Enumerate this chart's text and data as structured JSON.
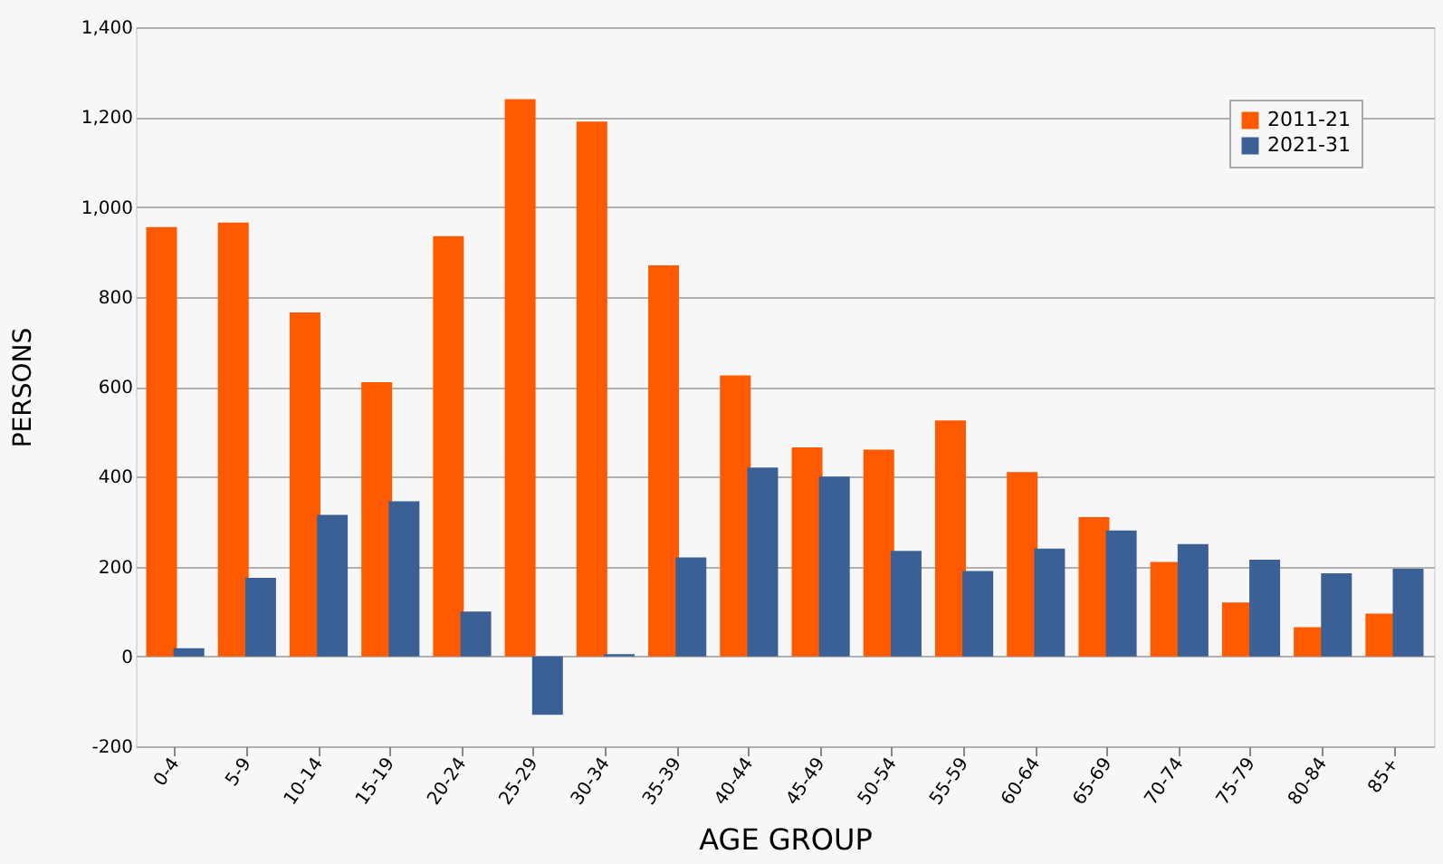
{
  "chart_data": {
    "type": "bar",
    "xlabel": "AGE GROUP",
    "ylabel": "PERSONS",
    "categories": [
      "0-4",
      "5-9",
      "10-14",
      "15-19",
      "20-24",
      "25-29",
      "30-34",
      "35-39",
      "40-44",
      "45-49",
      "50-54",
      "55-59",
      "60-64",
      "65-69",
      "70-74",
      "75-79",
      "80-84",
      "85+"
    ],
    "series": [
      {
        "name": "2011-21",
        "color": "#ff5a00",
        "values": [
          955,
          965,
          765,
          610,
          935,
          1240,
          1190,
          870,
          625,
          465,
          460,
          525,
          410,
          310,
          210,
          120,
          65,
          95
        ]
      },
      {
        "name": "2021-31",
        "color": "#3b6096",
        "values": [
          18,
          175,
          315,
          345,
          100,
          -130,
          5,
          220,
          420,
          400,
          235,
          190,
          240,
          280,
          250,
          215,
          185,
          195
        ]
      }
    ],
    "ylim": [
      -200,
      1400
    ],
    "yticks": [
      {
        "value": -200,
        "label": "-200"
      },
      0,
      200,
      400,
      600,
      800,
      {
        "value": 1000,
        "label": "1,000"
      },
      {
        "value": 1200,
        "label": "1,200"
      },
      {
        "value": 1400,
        "label": "1,400"
      }
    ],
    "grid": "y",
    "legend": "top right"
  }
}
